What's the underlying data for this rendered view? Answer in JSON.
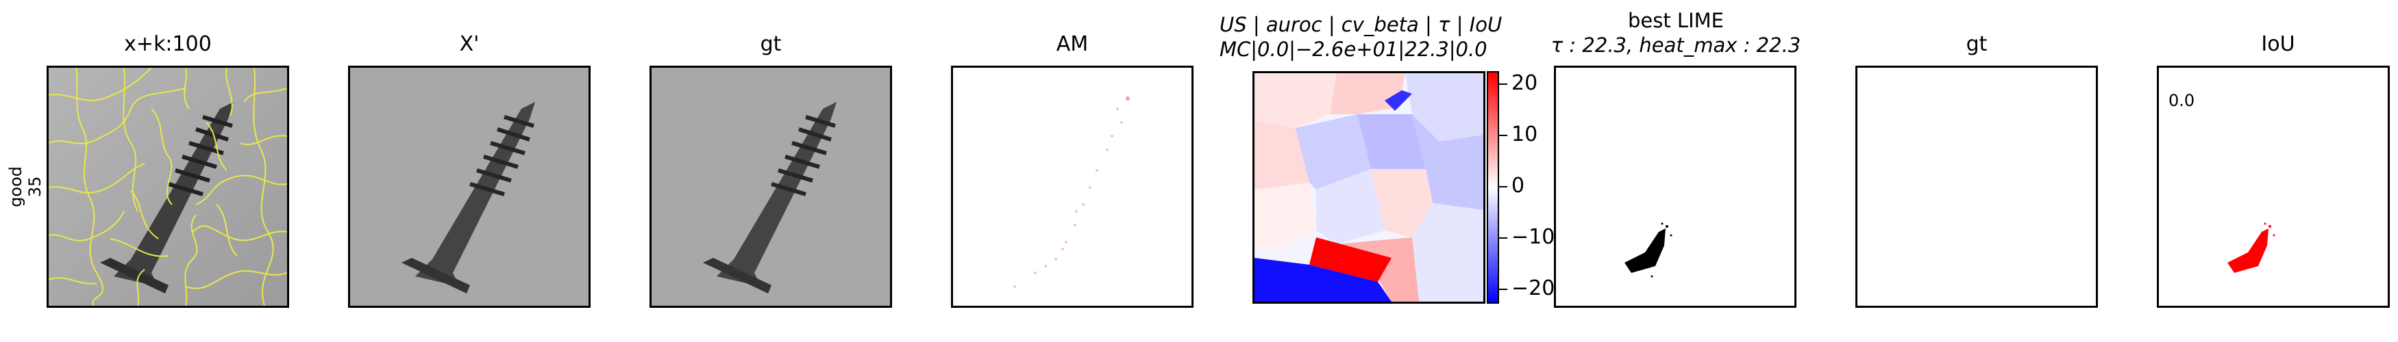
{
  "row_label": {
    "line1": "good",
    "line2": "35"
  },
  "panels": [
    {
      "title": "x+k:100"
    },
    {
      "title": "X'"
    },
    {
      "title": "gt"
    },
    {
      "title": "AM"
    },
    {
      "title_line1": "US | auroc | cv_beta | τ | IoU",
      "title_line2": "MC|0.0|−2.6e+01|22.3|0.0"
    },
    {
      "title_line1": "best LIME",
      "title_line2": "τ : 22.3, heat_max : 22.3"
    },
    {
      "title": "gt"
    },
    {
      "title": "IoU"
    }
  ],
  "colorbar": {
    "ticks": [
      "20",
      "10",
      "0",
      "−10",
      "−20"
    ],
    "colors": {
      "high": "#ff0000",
      "mid": "#ffffff",
      "low": "#0000ff"
    }
  },
  "iou_value": "0.0",
  "colors": {
    "superpixel_boundary": "#e8e84a",
    "mask_red": "#ff0000",
    "mask_black": "#000000"
  }
}
